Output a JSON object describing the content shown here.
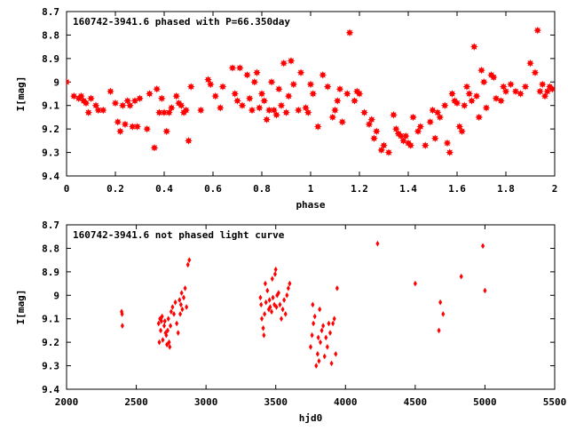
{
  "chart_data": [
    {
      "type": "scatter",
      "title": "160742-3941.6 phased with P=66.350day",
      "xlabel": "phase",
      "ylabel": "I[mag]",
      "xlim": [
        0,
        2
      ],
      "ylim": [
        9.4,
        8.7
      ],
      "y_inverted": true,
      "grid": false,
      "marker": "star",
      "color": "#ff0000",
      "x_ticks": [
        0,
        0.2,
        0.4,
        0.6,
        0.8,
        1,
        1.2,
        1.4,
        1.6,
        1.8,
        2
      ],
      "x_tick_labels": [
        "0",
        "0.2",
        "0.4",
        "0.6",
        "0.8",
        "1",
        "1.2",
        "1.4",
        "1.6",
        "1.8",
        "2"
      ],
      "y_ticks": [
        8.7,
        8.8,
        8.9,
        9.0,
        9.1,
        9.2,
        9.3,
        9.4
      ],
      "y_tick_labels": [
        "8.7",
        "8.8",
        "8.9",
        "9",
        "9.1",
        "9.2",
        "9.3",
        "9.4"
      ],
      "x": [
        0.0,
        0.03,
        0.05,
        0.06,
        0.07,
        0.08,
        0.09,
        0.1,
        0.12,
        0.13,
        0.15,
        0.18,
        0.2,
        0.21,
        0.22,
        0.23,
        0.24,
        0.25,
        0.26,
        0.27,
        0.28,
        0.29,
        0.3,
        0.33,
        0.34,
        0.36,
        0.37,
        0.38,
        0.39,
        0.4,
        0.41,
        0.42,
        0.43,
        0.45,
        0.46,
        0.47,
        0.48,
        0.49,
        0.5,
        0.51,
        0.55,
        0.58,
        0.59,
        0.61,
        0.63,
        0.64,
        0.68,
        0.69,
        0.7,
        0.71,
        0.72,
        0.74,
        0.75,
        0.76,
        0.77,
        0.78,
        0.79,
        0.8,
        0.81,
        0.82,
        0.83,
        0.84,
        0.85,
        0.86,
        0.87,
        0.88,
        0.89,
        0.9,
        0.91,
        0.92,
        0.93,
        0.95,
        0.96,
        0.98,
        0.99,
        1.0,
        1.01,
        1.03,
        1.05,
        1.07,
        1.09,
        1.1,
        1.11,
        1.12,
        1.13,
        1.15,
        1.16,
        1.18,
        1.19,
        1.2,
        1.22,
        1.24,
        1.25,
        1.26,
        1.27,
        1.29,
        1.3,
        1.32,
        1.34,
        1.35,
        1.36,
        1.37,
        1.38,
        1.39,
        1.4,
        1.41,
        1.42,
        1.44,
        1.45,
        1.47,
        1.49,
        1.5,
        1.51,
        1.52,
        1.53,
        1.55,
        1.56,
        1.57,
        1.58,
        1.59,
        1.6,
        1.61,
        1.62,
        1.63,
        1.64,
        1.65,
        1.66,
        1.67,
        1.68,
        1.69,
        1.7,
        1.71,
        1.72,
        1.74,
        1.75,
        1.76,
        1.78,
        1.79,
        1.8,
        1.82,
        1.84,
        1.86,
        1.88,
        1.9,
        1.92,
        1.93,
        1.94,
        1.95,
        1.96,
        1.97,
        1.98,
        1.99
      ],
      "y": [
        9.0,
        9.06,
        9.07,
        9.06,
        9.08,
        9.09,
        9.13,
        9.07,
        9.1,
        9.12,
        9.12,
        9.04,
        9.09,
        9.17,
        9.21,
        9.1,
        9.18,
        9.08,
        9.1,
        9.19,
        9.08,
        9.19,
        9.07,
        9.2,
        9.05,
        9.28,
        9.03,
        9.13,
        9.07,
        9.13,
        9.21,
        9.13,
        9.11,
        9.06,
        9.09,
        9.1,
        9.13,
        9.12,
        9.25,
        9.02,
        9.12,
        8.99,
        9.01,
        9.06,
        9.11,
        9.02,
        8.94,
        9.05,
        9.08,
        8.94,
        9.1,
        8.97,
        9.07,
        9.12,
        9.0,
        8.96,
        9.11,
        9.05,
        9.08,
        9.16,
        9.12,
        9.0,
        9.12,
        9.14,
        9.03,
        9.1,
        8.92,
        9.13,
        9.06,
        8.91,
        9.01,
        9.12,
        8.96,
        9.11,
        9.13,
        9.01,
        9.05,
        9.19,
        8.97,
        9.02,
        9.15,
        9.12,
        9.08,
        9.03,
        9.17,
        9.05,
        8.79,
        9.08,
        9.04,
        9.05,
        9.13,
        9.18,
        9.16,
        9.24,
        9.21,
        9.29,
        9.27,
        9.3,
        9.14,
        9.2,
        9.22,
        9.23,
        9.25,
        9.23,
        9.26,
        9.27,
        9.15,
        9.21,
        9.19,
        9.27,
        9.17,
        9.12,
        9.24,
        9.13,
        9.15,
        9.1,
        9.26,
        9.3,
        9.05,
        9.08,
        9.09,
        9.19,
        9.21,
        9.1,
        9.02,
        9.05,
        9.08,
        8.85,
        9.06,
        9.15,
        8.95,
        9.0,
        9.11,
        8.97,
        8.98,
        9.07,
        9.08,
        9.02,
        9.04,
        9.01,
        9.04,
        9.05,
        9.02,
        8.92,
        8.96,
        8.78,
        9.04,
        9.01,
        9.06,
        9.04,
        9.02,
        9.03
      ]
    },
    {
      "type": "scatter",
      "title": "160742-3941.6 not phased light curve",
      "xlabel": "hjd0",
      "ylabel": "I[mag]",
      "xlim": [
        2000,
        5500
      ],
      "ylim": [
        9.4,
        8.7
      ],
      "y_inverted": true,
      "grid": false,
      "marker": "diamond",
      "color": "#ff0000",
      "x_ticks": [
        2000,
        2500,
        3000,
        3500,
        4000,
        4500,
        5000,
        5500
      ],
      "x_tick_labels": [
        "2000",
        "2500",
        "3000",
        "3500",
        "4000",
        "4500",
        "5000",
        "5500"
      ],
      "y_ticks": [
        8.7,
        8.8,
        8.9,
        9.0,
        9.1,
        9.2,
        9.3,
        9.4
      ],
      "y_tick_labels": [
        "8.7",
        "8.8",
        "8.9",
        "9",
        "9.1",
        "9.2",
        "9.3",
        "9.4"
      ],
      "x": [
        2395,
        2398,
        2400,
        2660,
        2665,
        2670,
        2675,
        2680,
        2685,
        2690,
        2700,
        2705,
        2710,
        2715,
        2720,
        2725,
        2730,
        2735,
        2740,
        2745,
        2750,
        2760,
        2770,
        2780,
        2790,
        2800,
        2810,
        2815,
        2820,
        2825,
        2830,
        2840,
        2850,
        2860,
        2870,
        2880,
        3390,
        3395,
        3400,
        3410,
        3415,
        3420,
        3425,
        3430,
        3440,
        3450,
        3455,
        3460,
        3470,
        3475,
        3480,
        3490,
        3495,
        3500,
        3505,
        3510,
        3520,
        3530,
        3540,
        3550,
        3560,
        3570,
        3580,
        3590,
        3600,
        3750,
        3760,
        3765,
        3770,
        3780,
        3790,
        3800,
        3805,
        3810,
        3815,
        3820,
        3830,
        3840,
        3850,
        3860,
        3870,
        3880,
        3890,
        3900,
        3910,
        3920,
        3930,
        3940,
        4230,
        4500,
        4670,
        4680,
        4700,
        4830,
        4985,
        5000
      ],
      "y": [
        9.07,
        9.08,
        9.13,
        9.12,
        9.2,
        9.1,
        9.15,
        9.11,
        9.09,
        9.19,
        9.13,
        9.11,
        9.16,
        9.17,
        9.21,
        9.15,
        9.1,
        9.2,
        9.22,
        9.13,
        9.07,
        9.05,
        9.08,
        9.03,
        9.12,
        9.16,
        9.02,
        9.08,
        9.04,
        8.99,
        9.06,
        9.01,
        8.97,
        9.05,
        8.87,
        8.85,
        9.01,
        9.04,
        9.1,
        9.14,
        9.17,
        9.08,
        8.95,
        9.03,
        8.98,
        9.06,
        9.02,
        9.05,
        9.07,
        8.93,
        9.01,
        9.04,
        8.91,
        8.89,
        9.05,
        9.0,
        8.99,
        9.04,
        9.1,
        9.06,
        9.02,
        9.08,
        9.0,
        8.97,
        8.95,
        9.22,
        9.17,
        9.04,
        9.12,
        9.09,
        9.3,
        9.25,
        9.18,
        9.28,
        9.06,
        9.2,
        9.15,
        9.13,
        9.26,
        9.18,
        9.22,
        9.12,
        9.16,
        9.29,
        9.12,
        9.1,
        9.25,
        8.97,
        8.78,
        8.95,
        9.15,
        9.03,
        9.08,
        8.92,
        8.79,
        8.98
      ]
    }
  ]
}
